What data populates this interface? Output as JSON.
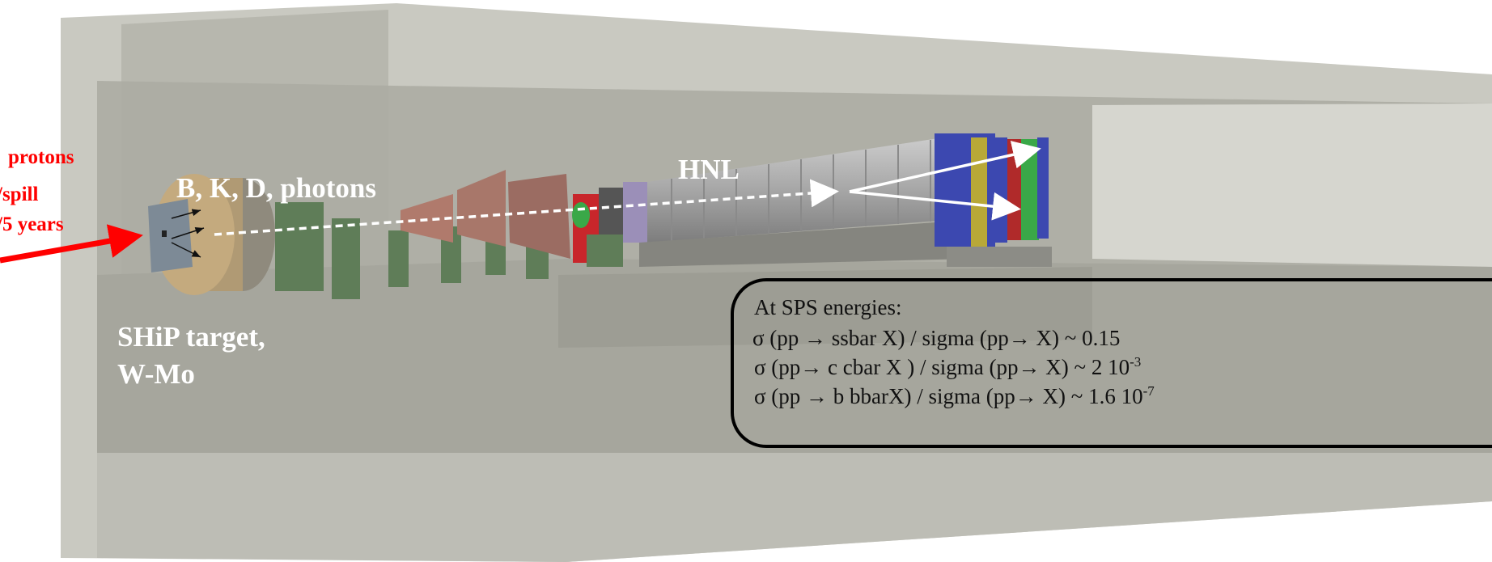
{
  "beam_labels": [
    "protons",
    "/spill",
    "/5 years"
  ],
  "particles_label": "B, K, D, photons",
  "hnl_label": "HNL",
  "target_label": [
    "SHiP target,",
    "W-Mo"
  ],
  "info_box": {
    "title": "At SPS energies:",
    "lines": [
      {
        "text": "σ (pp → ssbar X) / sigma (pp→ X) ~ 0.15"
      },
      {
        "text": "σ (pp→ c cbar X ) / sigma (pp→ X)  ~ 2 10",
        "sup": "-3"
      },
      {
        "text": "σ (pp → b bbarX) / sigma (pp→ X)  ~ 1.6 10",
        "sup": "-7"
      }
    ]
  }
}
